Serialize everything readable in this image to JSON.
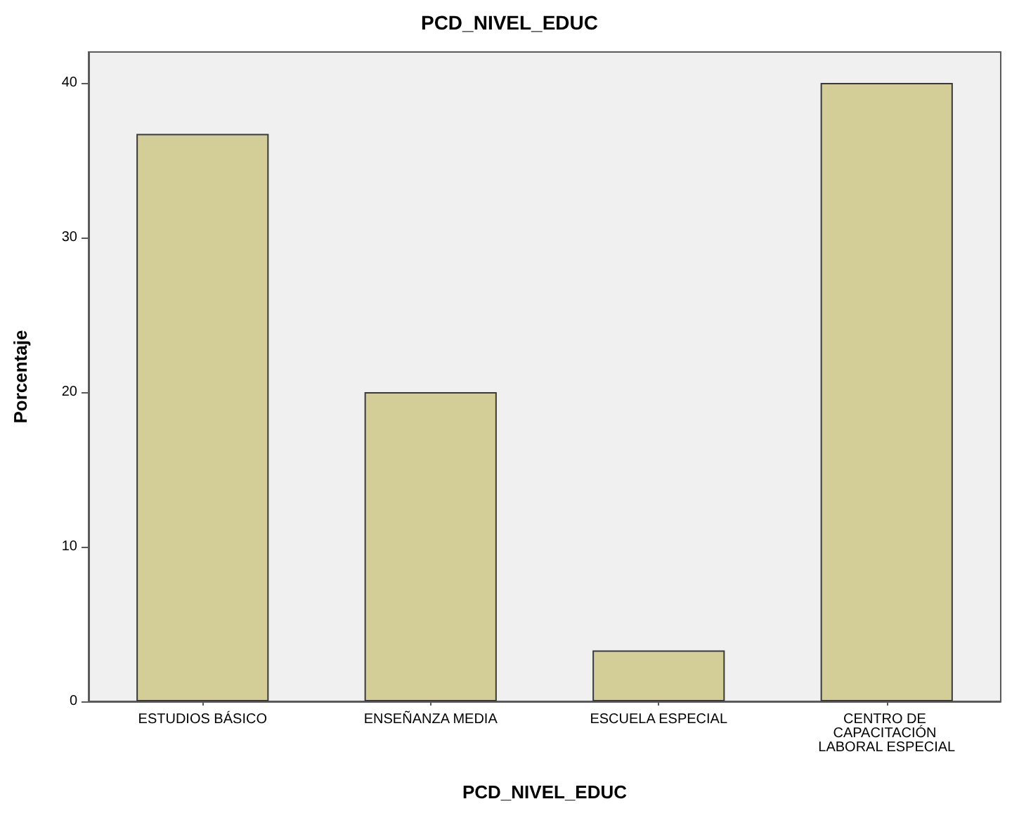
{
  "chart_data": {
    "type": "bar",
    "title": "PCD_NIVEL_EDUC",
    "xlabel": "PCD_NIVEL_EDUC",
    "ylabel": "Porcentaje",
    "categories": [
      "ESTUDIOS BÁSICO",
      "ENSEÑANZA MEDIA",
      "ESCUELA ESPECIAL",
      "CENTRO DE CAPACITACIÓN LABORAL ESPECIAL"
    ],
    "values": [
      36.7,
      20,
      3.3,
      40
    ],
    "color": "#d3ce97",
    "ylim": [
      0,
      42
    ],
    "yticks": [
      0,
      10,
      20,
      30,
      40
    ],
    "grid": false
  }
}
